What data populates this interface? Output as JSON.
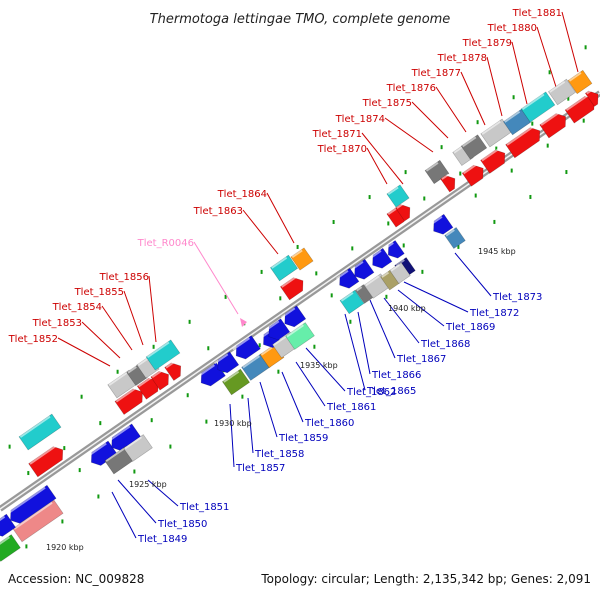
{
  "title": "Thermotoga lettingae TMO, complete genome",
  "footer": {
    "accession": "Accession: NC_009828",
    "summary": "Topology: circular; Length: 2,135,342 bp; Genes: 2,091"
  },
  "colors": {
    "forward_label": "#cc0000",
    "reverse_label": "#0000bb",
    "rna_label": "#ff88cc",
    "backbone": "#999999",
    "tick": "#119911"
  },
  "scale_labels": [
    "1920 kbp",
    "1925 kbp",
    "1930 kbp",
    "1935 kbp",
    "1940 kbp",
    "1945 kbp"
  ],
  "forward_genes": [
    "Tlet_1852",
    "Tlet_1853",
    "Tlet_1854",
    "Tlet_1855",
    "Tlet_1856",
    "Tlet_1863",
    "Tlet_1864",
    "Tlet_1870",
    "Tlet_1871",
    "Tlet_1874",
    "Tlet_1875",
    "Tlet_1876",
    "Tlet_1877",
    "Tlet_1878",
    "Tlet_1879",
    "Tlet_1880",
    "Tlet_1881"
  ],
  "reverse_genes": [
    "Tlet_1849",
    "Tlet_1850",
    "Tlet_1851",
    "Tlet_1857",
    "Tlet_1858",
    "Tlet_1859",
    "Tlet_1860",
    "Tlet_1861",
    "Tlet_1862",
    "Tlet_1865",
    "Tlet_1866",
    "Tlet_1867",
    "Tlet_1868",
    "Tlet_1869",
    "Tlet_1872",
    "Tlet_1873"
  ],
  "rna_genes": [
    "Tlet_R0046"
  ]
}
